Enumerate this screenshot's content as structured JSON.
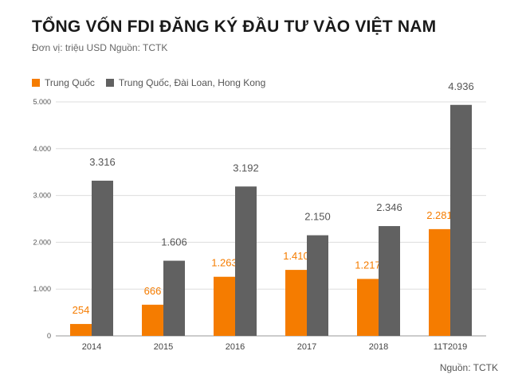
{
  "title": "TỔNG VỐN FDI ĐĂNG KÝ ĐẦU TƯ VÀO VIỆT NAM",
  "subtitle": "Đơn vị: triệu USD  Nguồn: TCTK",
  "source": "Nguồn: TCTK",
  "colors": {
    "series1": "#F57C00",
    "series2": "#616161",
    "grid": "#dddddd"
  },
  "chart_data": {
    "type": "bar",
    "title": "TỔNG VỐN FDI ĐĂNG KÝ ĐẦU TƯ VÀO VIỆT NAM",
    "xlabel": "",
    "ylabel": "",
    "ylim": [
      0,
      5000
    ],
    "yticks": [
      0,
      1000,
      2000,
      3000,
      4000,
      5000
    ],
    "ytick_labels": [
      "0",
      "1.000",
      "2.000",
      "3.000",
      "4.000",
      "5.000"
    ],
    "categories": [
      "2014",
      "2015",
      "2016",
      "2017",
      "2018",
      "11T2019"
    ],
    "legend_position": "top-left",
    "grid": true,
    "series": [
      {
        "name": "Trung Quốc",
        "color": "#F57C00",
        "values": [
          254,
          666,
          1263,
          1410,
          1217,
          2281
        ],
        "labels": [
          "254",
          "666",
          "1.263",
          "1.410",
          "1.217",
          "2.281"
        ]
      },
      {
        "name": "Trung Quốc, Đài Loan, Hong Kong",
        "color": "#616161",
        "values": [
          3316,
          1606,
          3192,
          2150,
          2346,
          4936
        ],
        "labels": [
          "3.316",
          "1.606",
          "3.192",
          "2.150",
          "2.346",
          "4.936"
        ]
      }
    ]
  }
}
